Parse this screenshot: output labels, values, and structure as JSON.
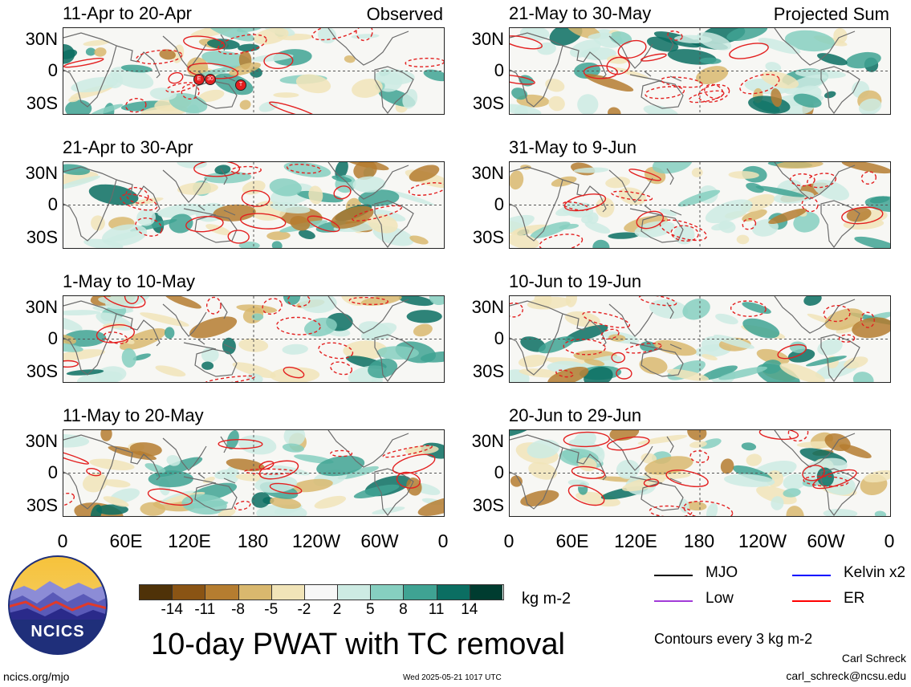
{
  "panels_left": [
    {
      "title": "11-Apr to 20-Apr",
      "label": "Observed"
    },
    {
      "title": "21-Apr to 30-Apr",
      "label": ""
    },
    {
      "title": "1-May to 10-May",
      "label": ""
    },
    {
      "title": "11-May to 20-May",
      "label": ""
    }
  ],
  "panels_right": [
    {
      "title": "21-May to 30-May",
      "label": "Projected Sum"
    },
    {
      "title": "31-May to 9-Jun",
      "label": ""
    },
    {
      "title": "10-Jun to 19-Jun",
      "label": ""
    },
    {
      "title": "20-Jun to 29-Jun",
      "label": ""
    }
  ],
  "lat_labels": [
    "30N",
    "0",
    "30S"
  ],
  "lon_labels": [
    "0",
    "60E",
    "120E",
    "180",
    "120W",
    "60W",
    "0"
  ],
  "tc_markers": [
    "E",
    "30",
    "T"
  ],
  "colorbar": {
    "unit": "kg m-2",
    "ticks": [
      "-14",
      "-11",
      "-8",
      "-5",
      "-2",
      "2",
      "5",
      "8",
      "11",
      "14"
    ],
    "colors": [
      "#4f3208",
      "#8a5414",
      "#b57d30",
      "#d9b86e",
      "#f1e4b8",
      "#f7f7f7",
      "#cdebe3",
      "#86cfc0",
      "#3fa393",
      "#0b6e62",
      "#003c30"
    ]
  },
  "legend": [
    {
      "name": "MJO",
      "color": "#000000",
      "dashed": false
    },
    {
      "name": "Kelvin x2",
      "color": "#0000ff",
      "dashed": false
    },
    {
      "name": "Low",
      "color": "#a23bd8",
      "dashed": false
    },
    {
      "name": "ER",
      "color": "#ff0000",
      "dashed": false
    }
  ],
  "contour_note": "Contours every 3 kg m-2",
  "main_title": "10-day PWAT with TC removal",
  "logo_text": "NCICS",
  "footer": {
    "left": "ncics.org/mjo",
    "center": "Wed 2025-05-21 1017 UTC",
    "author": "Carl Schreck",
    "email": "carl_schreck@ncsu.edu"
  }
}
